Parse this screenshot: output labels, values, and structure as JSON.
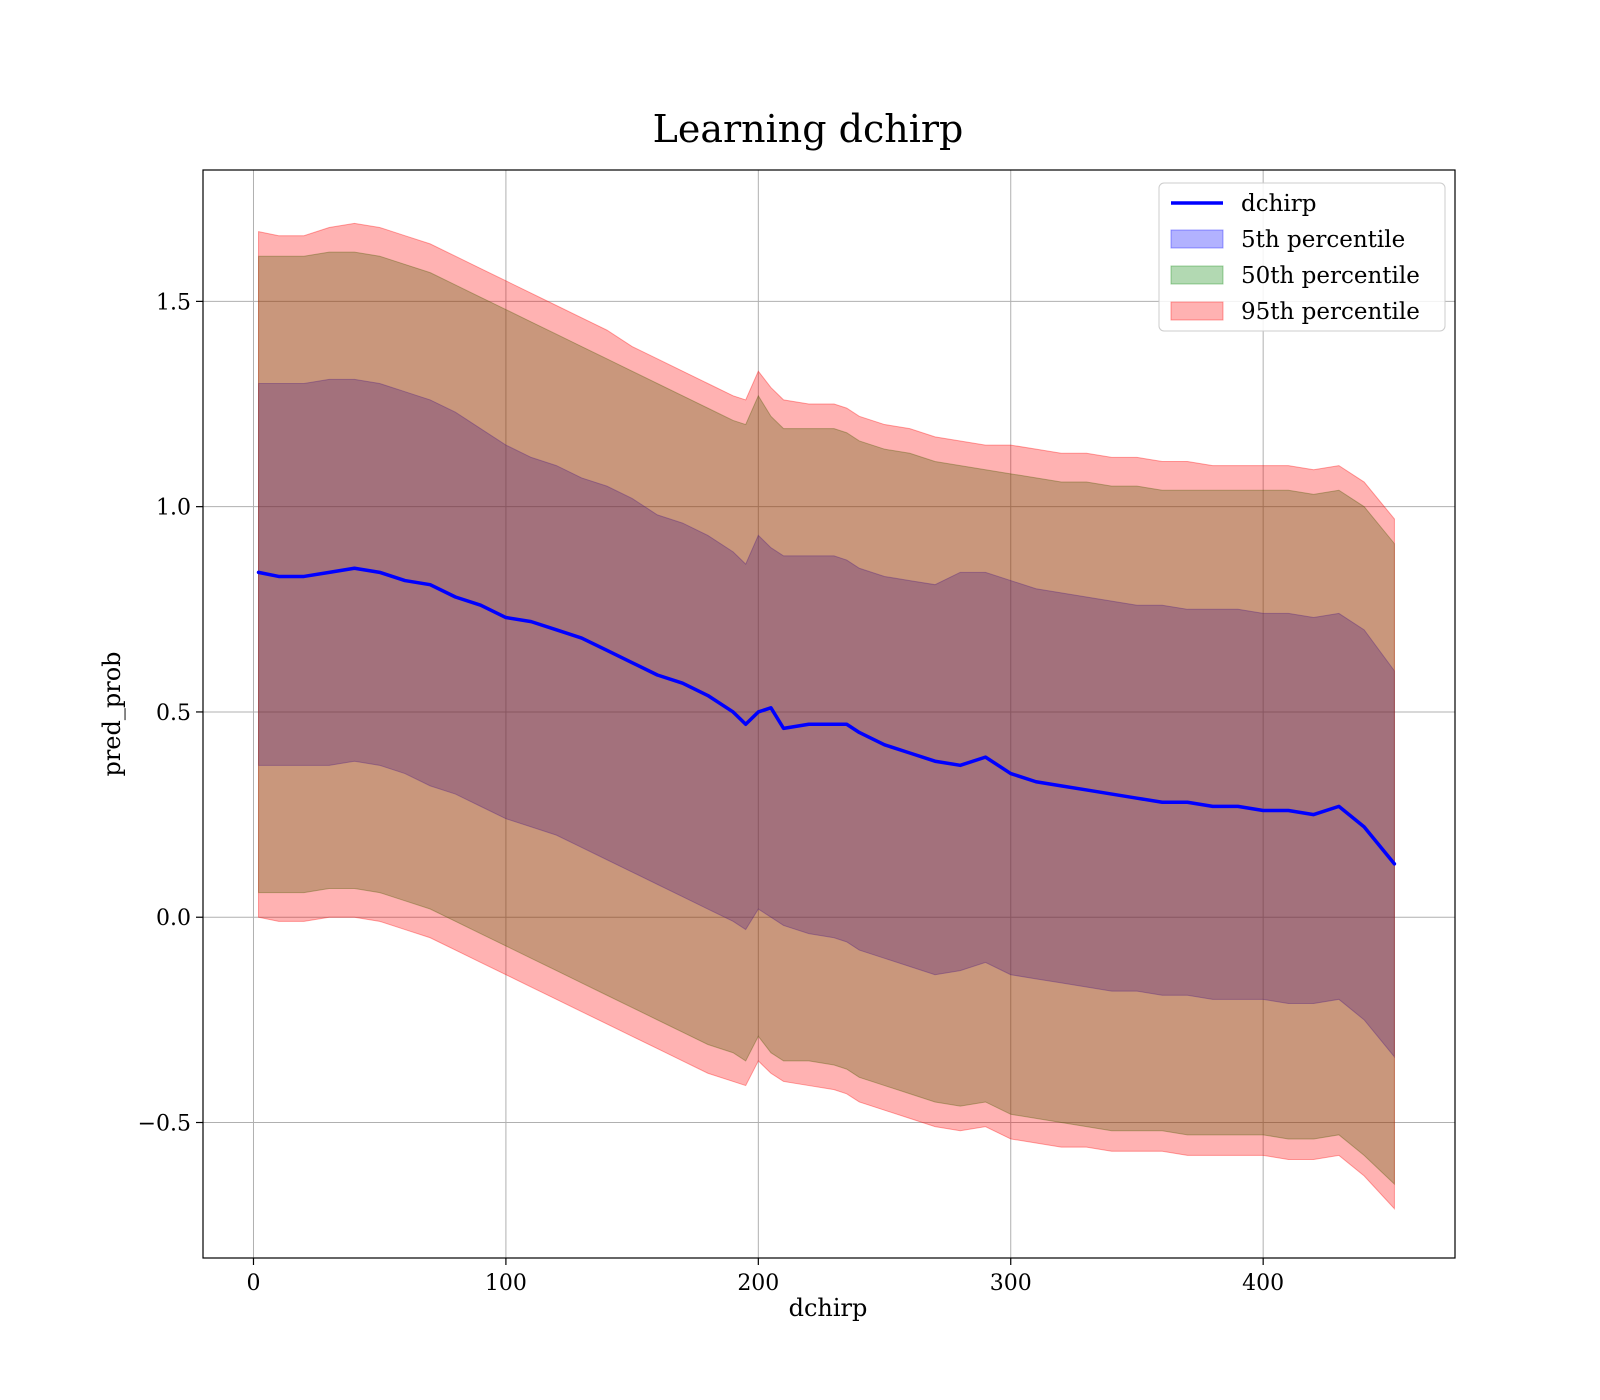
{
  "chart_data": {
    "type": "line",
    "title": "Learning dchirp",
    "xlabel": "dchirp",
    "ylabel": "pred_prob",
    "xlim": [
      -20,
      476
    ],
    "ylim": [
      -0.83,
      1.82
    ],
    "xticks": [
      0,
      100,
      200,
      300,
      400
    ],
    "yticks": [
      -0.5,
      0.0,
      0.5,
      1.0,
      1.5
    ],
    "xtick_labels": [
      "0",
      "100",
      "200",
      "300",
      "400"
    ],
    "ytick_labels": [
      "−0.5",
      "0.0",
      "0.5",
      "1.0",
      "1.5"
    ],
    "grid": true,
    "legend_position": "top-right",
    "x": [
      2,
      10,
      20,
      30,
      40,
      50,
      60,
      70,
      80,
      90,
      100,
      110,
      120,
      130,
      140,
      150,
      160,
      170,
      180,
      190,
      195,
      200,
      205,
      210,
      220,
      230,
      235,
      240,
      250,
      260,
      270,
      280,
      290,
      300,
      310,
      320,
      330,
      340,
      350,
      360,
      370,
      380,
      390,
      400,
      410,
      420,
      430,
      440,
      452
    ],
    "series": [
      {
        "name": "dchirp",
        "kind": "line",
        "color": "#0000ff",
        "y": [
          0.84,
          0.83,
          0.83,
          0.84,
          0.85,
          0.84,
          0.82,
          0.81,
          0.78,
          0.76,
          0.73,
          0.72,
          0.7,
          0.68,
          0.65,
          0.62,
          0.59,
          0.57,
          0.54,
          0.5,
          0.47,
          0.5,
          0.51,
          0.46,
          0.47,
          0.47,
          0.47,
          0.45,
          0.42,
          0.4,
          0.38,
          0.37,
          0.39,
          0.35,
          0.33,
          0.32,
          0.31,
          0.3,
          0.29,
          0.28,
          0.28,
          0.27,
          0.27,
          0.26,
          0.26,
          0.25,
          0.27,
          0.22,
          0.13
        ]
      },
      {
        "name": "5th percentile",
        "kind": "band",
        "color": "#0000ff",
        "upper": [
          1.3,
          1.3,
          1.3,
          1.31,
          1.31,
          1.3,
          1.28,
          1.26,
          1.23,
          1.19,
          1.15,
          1.12,
          1.1,
          1.07,
          1.05,
          1.02,
          0.98,
          0.96,
          0.93,
          0.89,
          0.86,
          0.93,
          0.9,
          0.88,
          0.88,
          0.88,
          0.87,
          0.85,
          0.83,
          0.82,
          0.81,
          0.84,
          0.84,
          0.82,
          0.8,
          0.79,
          0.78,
          0.77,
          0.76,
          0.76,
          0.75,
          0.75,
          0.75,
          0.74,
          0.74,
          0.73,
          0.74,
          0.7,
          0.6
        ],
        "lower": [
          0.37,
          0.37,
          0.37,
          0.37,
          0.38,
          0.37,
          0.35,
          0.32,
          0.3,
          0.27,
          0.24,
          0.22,
          0.2,
          0.17,
          0.14,
          0.11,
          0.08,
          0.05,
          0.02,
          -0.01,
          -0.03,
          0.02,
          0.0,
          -0.02,
          -0.04,
          -0.05,
          -0.06,
          -0.08,
          -0.1,
          -0.12,
          -0.14,
          -0.13,
          -0.11,
          -0.14,
          -0.15,
          -0.16,
          -0.17,
          -0.18,
          -0.18,
          -0.19,
          -0.19,
          -0.2,
          -0.2,
          -0.2,
          -0.21,
          -0.21,
          -0.2,
          -0.25,
          -0.34
        ]
      },
      {
        "name": "50th percentile",
        "kind": "band",
        "color": "#008000",
        "upper": [
          1.61,
          1.61,
          1.61,
          1.62,
          1.62,
          1.61,
          1.59,
          1.57,
          1.54,
          1.51,
          1.48,
          1.45,
          1.42,
          1.39,
          1.36,
          1.33,
          1.3,
          1.27,
          1.24,
          1.21,
          1.2,
          1.27,
          1.22,
          1.19,
          1.19,
          1.19,
          1.18,
          1.16,
          1.14,
          1.13,
          1.11,
          1.1,
          1.09,
          1.08,
          1.07,
          1.06,
          1.06,
          1.05,
          1.05,
          1.04,
          1.04,
          1.04,
          1.04,
          1.04,
          1.04,
          1.03,
          1.04,
          1.0,
          0.91
        ],
        "lower": [
          0.06,
          0.06,
          0.06,
          0.07,
          0.07,
          0.06,
          0.04,
          0.02,
          -0.01,
          -0.04,
          -0.07,
          -0.1,
          -0.13,
          -0.16,
          -0.19,
          -0.22,
          -0.25,
          -0.28,
          -0.31,
          -0.33,
          -0.35,
          -0.29,
          -0.33,
          -0.35,
          -0.35,
          -0.36,
          -0.37,
          -0.39,
          -0.41,
          -0.43,
          -0.45,
          -0.46,
          -0.45,
          -0.48,
          -0.49,
          -0.5,
          -0.51,
          -0.52,
          -0.52,
          -0.52,
          -0.53,
          -0.53,
          -0.53,
          -0.53,
          -0.54,
          -0.54,
          -0.53,
          -0.58,
          -0.65
        ]
      },
      {
        "name": "95th percentile",
        "kind": "band",
        "color": "#ff0000",
        "upper": [
          1.67,
          1.66,
          1.66,
          1.68,
          1.69,
          1.68,
          1.66,
          1.64,
          1.61,
          1.58,
          1.55,
          1.52,
          1.49,
          1.46,
          1.43,
          1.39,
          1.36,
          1.33,
          1.3,
          1.27,
          1.26,
          1.33,
          1.29,
          1.26,
          1.25,
          1.25,
          1.24,
          1.22,
          1.2,
          1.19,
          1.17,
          1.16,
          1.15,
          1.15,
          1.14,
          1.13,
          1.13,
          1.12,
          1.12,
          1.11,
          1.11,
          1.1,
          1.1,
          1.1,
          1.1,
          1.09,
          1.1,
          1.06,
          0.97
        ],
        "lower": [
          0.0,
          -0.01,
          -0.01,
          0.0,
          0.0,
          -0.01,
          -0.03,
          -0.05,
          -0.08,
          -0.11,
          -0.14,
          -0.17,
          -0.2,
          -0.23,
          -0.26,
          -0.29,
          -0.32,
          -0.35,
          -0.38,
          -0.4,
          -0.41,
          -0.35,
          -0.38,
          -0.4,
          -0.41,
          -0.42,
          -0.43,
          -0.45,
          -0.47,
          -0.49,
          -0.51,
          -0.52,
          -0.51,
          -0.54,
          -0.55,
          -0.56,
          -0.56,
          -0.57,
          -0.57,
          -0.57,
          -0.58,
          -0.58,
          -0.58,
          -0.58,
          -0.59,
          -0.59,
          -0.58,
          -0.63,
          -0.71
        ]
      }
    ]
  }
}
